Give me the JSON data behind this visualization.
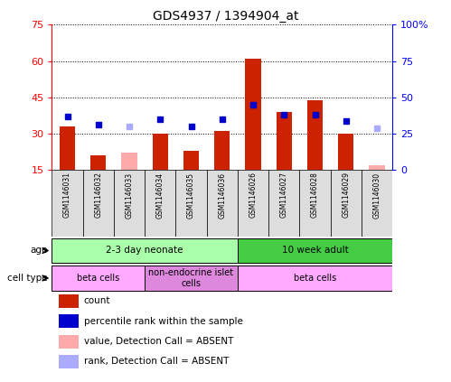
{
  "title": "GDS4937 / 1394904_at",
  "samples": [
    "GSM1146031",
    "GSM1146032",
    "GSM1146033",
    "GSM1146034",
    "GSM1146035",
    "GSM1146036",
    "GSM1146026",
    "GSM1146027",
    "GSM1146028",
    "GSM1146029",
    "GSM1146030"
  ],
  "count_values": [
    33,
    21,
    null,
    30,
    23,
    31,
    61,
    39,
    44,
    30,
    null
  ],
  "count_absent": [
    null,
    null,
    22,
    null,
    null,
    null,
    null,
    null,
    null,
    null,
    17
  ],
  "rank_values": [
    37,
    31,
    null,
    35,
    30,
    35,
    45,
    38,
    38,
    34,
    null
  ],
  "rank_absent": [
    null,
    null,
    30,
    null,
    null,
    null,
    null,
    null,
    null,
    null,
    29
  ],
  "left_ylim": [
    15,
    75
  ],
  "right_ylim": [
    0,
    100
  ],
  "left_yticks": [
    15,
    30,
    45,
    60,
    75
  ],
  "right_yticks": [
    0,
    25,
    50,
    75,
    100
  ],
  "right_yticklabels": [
    "0",
    "25",
    "50",
    "75",
    "100%"
  ],
  "bar_color": "#cc2200",
  "bar_absent_color": "#ffaaaa",
  "rank_color": "#0000cc",
  "rank_absent_color": "#aaaaff",
  "age_groups": [
    {
      "label": "2-3 day neonate",
      "start": 0,
      "end": 6,
      "color": "#aaffaa"
    },
    {
      "label": "10 week adult",
      "start": 6,
      "end": 11,
      "color": "#44cc44"
    }
  ],
  "cell_groups": [
    {
      "label": "beta cells",
      "start": 0,
      "end": 3,
      "color": "#ffaaff"
    },
    {
      "label": "non-endocrine islet\ncells",
      "start": 3,
      "end": 6,
      "color": "#dd88dd"
    },
    {
      "label": "beta cells",
      "start": 6,
      "end": 11,
      "color": "#ffaaff"
    }
  ],
  "legend_items": [
    {
      "label": "count",
      "color": "#cc2200"
    },
    {
      "label": "percentile rank within the sample",
      "color": "#0000cc"
    },
    {
      "label": "value, Detection Call = ABSENT",
      "color": "#ffaaaa"
    },
    {
      "label": "rank, Detection Call = ABSENT",
      "color": "#aaaaff"
    }
  ],
  "sample_box_color": "#dddddd",
  "grid_color": "black"
}
